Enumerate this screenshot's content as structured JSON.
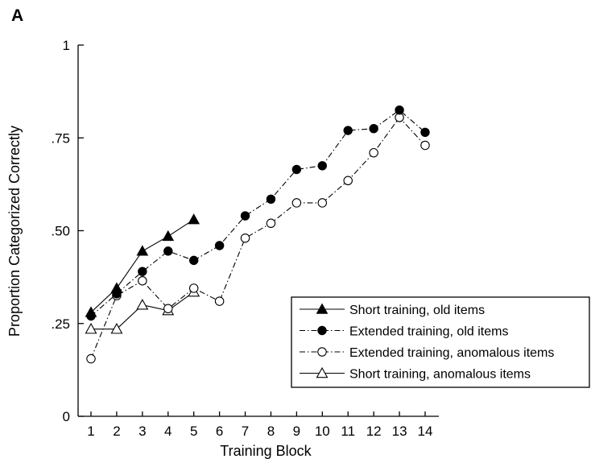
{
  "chart_data": {
    "type": "line",
    "panel_label": "A",
    "xlabel": "Training Block",
    "ylabel": "Proportion Categorized Correctly",
    "xlim": [
      0.5,
      14.5
    ],
    "ylim": [
      0,
      1
    ],
    "x_ticks": [
      1,
      2,
      3,
      4,
      5,
      6,
      7,
      8,
      9,
      10,
      11,
      12,
      13,
      14
    ],
    "x_tick_labels": [
      "1",
      "2",
      "3",
      "4",
      "5",
      "6",
      "7",
      "8",
      "9",
      "10",
      "11",
      "12",
      "13",
      "14"
    ],
    "y_ticks": [
      0,
      0.25,
      0.5,
      0.75,
      1
    ],
    "y_tick_labels": [
      "0",
      ".25",
      ".50",
      ".75",
      "1"
    ],
    "grid": false,
    "legend_position": "bottom-right",
    "series": [
      {
        "name": "Short training, old items",
        "marker": "filled-triangle",
        "line": "solid",
        "x": [
          1,
          2,
          3,
          4,
          5
        ],
        "values": [
          0.28,
          0.345,
          0.445,
          0.485,
          0.53
        ]
      },
      {
        "name": "Extended training, old items",
        "marker": "filled-circle",
        "line": "dash-dot",
        "x": [
          1,
          2,
          3,
          4,
          5,
          6,
          7,
          8,
          9,
          10,
          11,
          12,
          13,
          14
        ],
        "values": [
          0.27,
          0.33,
          0.39,
          0.445,
          0.42,
          0.46,
          0.54,
          0.585,
          0.665,
          0.675,
          0.77,
          0.775,
          0.825,
          0.765
        ]
      },
      {
        "name": "Extended training, anomalous items",
        "marker": "open-circle",
        "line": "dash-dot",
        "x": [
          1,
          2,
          3,
          4,
          5,
          6,
          7,
          8,
          9,
          10,
          11,
          12,
          13,
          14
        ],
        "values": [
          0.155,
          0.325,
          0.365,
          0.29,
          0.345,
          0.31,
          0.48,
          0.52,
          0.575,
          0.575,
          0.635,
          0.71,
          0.805,
          0.73
        ]
      },
      {
        "name": "Short training, anomalous items",
        "marker": "open-triangle",
        "line": "solid",
        "x": [
          1,
          2,
          3,
          4,
          5
        ],
        "values": [
          0.235,
          0.235,
          0.3,
          0.285,
          0.335
        ]
      }
    ]
  }
}
